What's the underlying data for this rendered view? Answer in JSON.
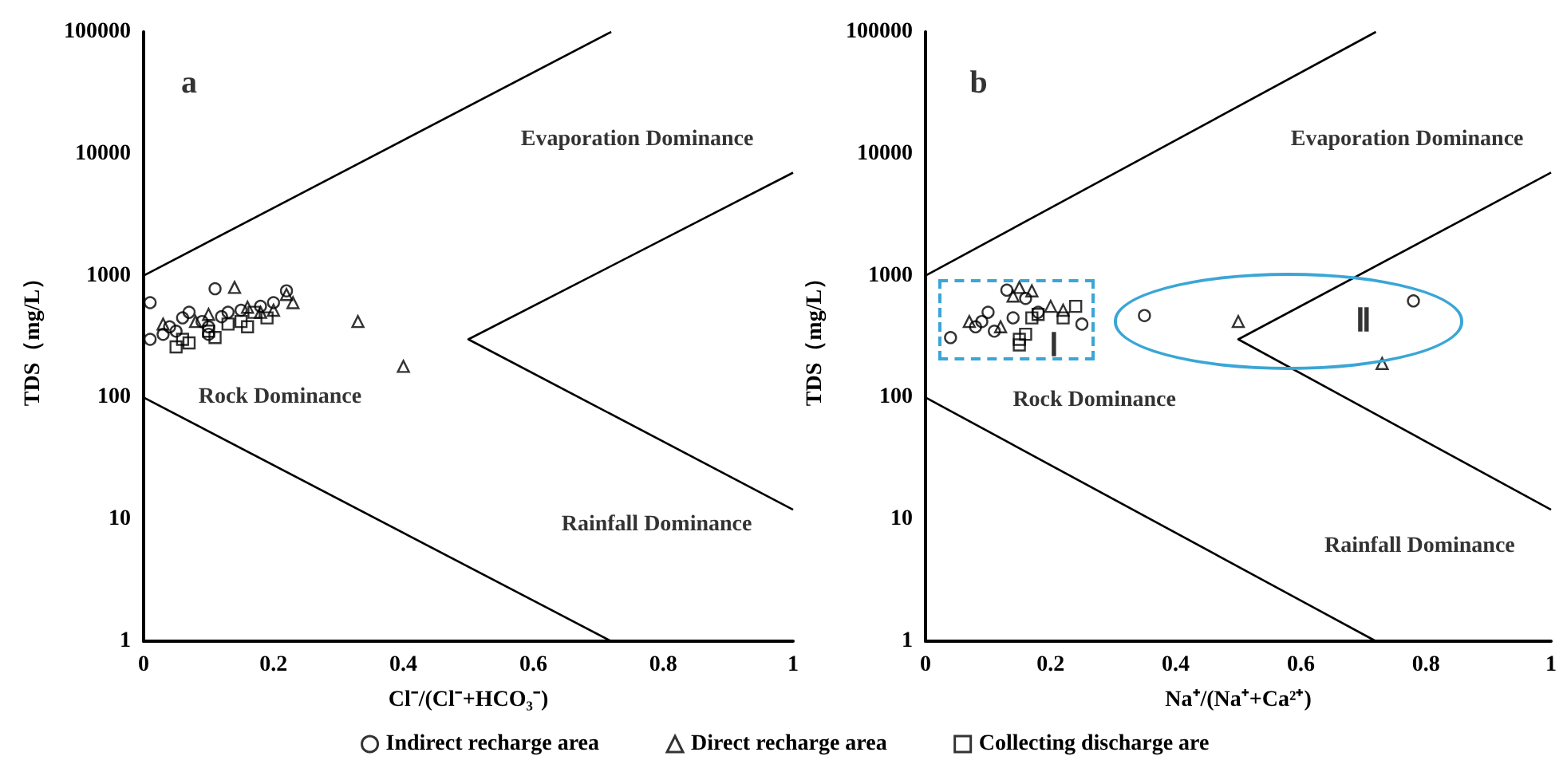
{
  "chart_data": [
    {
      "type": "scatter",
      "ylabel": "TDS（mg/L）",
      "xlabel": "Cl⁻/(Cl⁻+HCO₃⁻)",
      "log": "y",
      "xlim": [
        0,
        1
      ],
      "ylim": [
        1,
        100000
      ],
      "xticks": [
        0,
        0.2,
        0.4,
        0.6,
        0.8,
        1
      ],
      "yticks": [
        1,
        10,
        100,
        1000,
        10000,
        100000
      ],
      "grid": false,
      "legend": "bottom",
      "annotations": [
        "a",
        "Evaporation Dominance",
        "Rock Dominance",
        "Rainfall Dominance"
      ],
      "series": [
        {
          "type": "line",
          "color": "#000000",
          "marker": "none",
          "line_style": "solid",
          "x": [
            0,
            0.72
          ],
          "values": [
            1000,
            100000
          ]
        },
        {
          "type": "line",
          "color": "#000000",
          "marker": "none",
          "line_style": "solid",
          "x": [
            0,
            0.72
          ],
          "values": [
            100,
            1
          ]
        },
        {
          "type": "line",
          "color": "#000000",
          "marker": "none",
          "line_style": "solid",
          "x": [
            1,
            0.5,
            1
          ],
          "values": [
            7000,
            300,
            12
          ]
        },
        {
          "name": "Indirect recharge area",
          "color": "#000000",
          "marker": "circle",
          "x": [
            0.01,
            0.01,
            0.03,
            0.04,
            0.05,
            0.06,
            0.07,
            0.09,
            0.1,
            0.1,
            0.11,
            0.12,
            0.13,
            0.15,
            0.18,
            0.2,
            0.22
          ],
          "values": [
            600,
            300,
            330,
            380,
            350,
            450,
            500,
            420,
            380,
            330,
            780,
            460,
            500,
            520,
            560,
            600,
            750
          ]
        },
        {
          "name": "Direct recharge area",
          "color": "#000000",
          "marker": "triangle",
          "x": [
            0.03,
            0.08,
            0.1,
            0.14,
            0.16,
            0.18,
            0.2,
            0.22,
            0.23,
            0.33,
            0.4
          ],
          "values": [
            400,
            420,
            480,
            800,
            550,
            500,
            520,
            700,
            600,
            420,
            180
          ]
        },
        {
          "name": "Collecting discharge are",
          "color": "#000000",
          "marker": "square",
          "x": [
            0.05,
            0.06,
            0.07,
            0.1,
            0.11,
            0.13,
            0.15,
            0.16,
            0.17,
            0.19
          ],
          "values": [
            260,
            300,
            280,
            350,
            310,
            400,
            420,
            380,
            500,
            450
          ]
        }
      ]
    },
    {
      "type": "scatter",
      "ylabel": "TDS（mg/L）",
      "xlabel": "Na⁺/(Na⁺+Ca²⁺)",
      "log": "y",
      "xlim": [
        0,
        1
      ],
      "ylim": [
        1,
        100000
      ],
      "xticks": [
        0,
        0.2,
        0.4,
        0.6,
        0.8,
        1
      ],
      "yticks": [
        1,
        10,
        100,
        1000,
        10000,
        100000
      ],
      "grid": false,
      "annotations": [
        "b",
        "Evaporation Dominance",
        "Rock Dominance",
        "Rainfall Dominance",
        "Ⅰ",
        "Ⅱ"
      ],
      "series": [
        {
          "type": "line",
          "color": "#000000",
          "marker": "none",
          "line_style": "solid",
          "x": [
            0,
            0.72
          ],
          "values": [
            1000,
            100000
          ]
        },
        {
          "type": "line",
          "color": "#000000",
          "marker": "none",
          "line_style": "solid",
          "x": [
            0,
            0.72
          ],
          "values": [
            100,
            1
          ]
        },
        {
          "type": "line",
          "color": "#000000",
          "marker": "none",
          "line_style": "solid",
          "x": [
            1,
            0.5,
            1
          ],
          "values": [
            7000,
            300,
            12
          ]
        },
        {
          "color": "#000000",
          "marker": "circle",
          "x": [
            0.04,
            0.08,
            0.09,
            0.1,
            0.11,
            0.13,
            0.14,
            0.16,
            0.18,
            0.25,
            0.35,
            0.78
          ],
          "values": [
            310,
            380,
            420,
            500,
            350,
            760,
            450,
            650,
            500,
            400,
            470,
            620
          ]
        },
        {
          "color": "#000000",
          "marker": "triangle",
          "x": [
            0.07,
            0.12,
            0.14,
            0.15,
            0.17,
            0.2,
            0.22,
            0.5,
            0.73
          ],
          "values": [
            420,
            380,
            680,
            800,
            750,
            560,
            520,
            420,
            190
          ]
        },
        {
          "color": "#000000",
          "marker": "square",
          "x": [
            0.15,
            0.15,
            0.16,
            0.17,
            0.18,
            0.22,
            0.24
          ],
          "values": [
            270,
            300,
            330,
            450,
            480,
            450,
            560
          ]
        }
      ]
    }
  ]
}
